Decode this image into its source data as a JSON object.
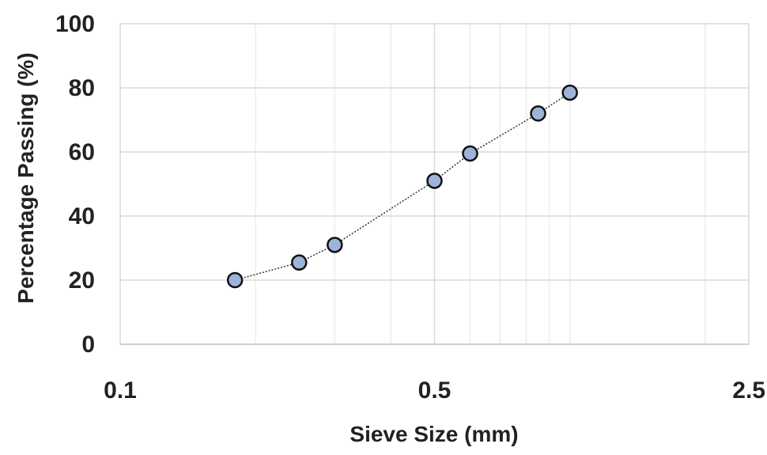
{
  "chart_data": {
    "type": "scatter",
    "xscale": "log",
    "xlabel": "Sieve Size (mm)",
    "ylabel": "Percentage Passing (%)",
    "xlim": [
      0.1,
      2.5
    ],
    "ylim": [
      0,
      100
    ],
    "x_ticks": [
      "0.1",
      "0.5",
      "2.5"
    ],
    "y_ticks": [
      "0",
      "20",
      "40",
      "60",
      "80",
      "100"
    ],
    "grid": true,
    "legend": "none",
    "series": [
      {
        "marker_color": "#9db3d9",
        "line_style": "dotted",
        "points": [
          {
            "x": 0.18,
            "y": 20
          },
          {
            "x": 0.25,
            "y": 25.5
          },
          {
            "x": 0.3,
            "y": 31
          },
          {
            "x": 0.5,
            "y": 51
          },
          {
            "x": 0.6,
            "y": 59.5
          },
          {
            "x": 0.85,
            "y": 72
          },
          {
            "x": 1.0,
            "y": 78.5
          }
        ]
      }
    ]
  }
}
